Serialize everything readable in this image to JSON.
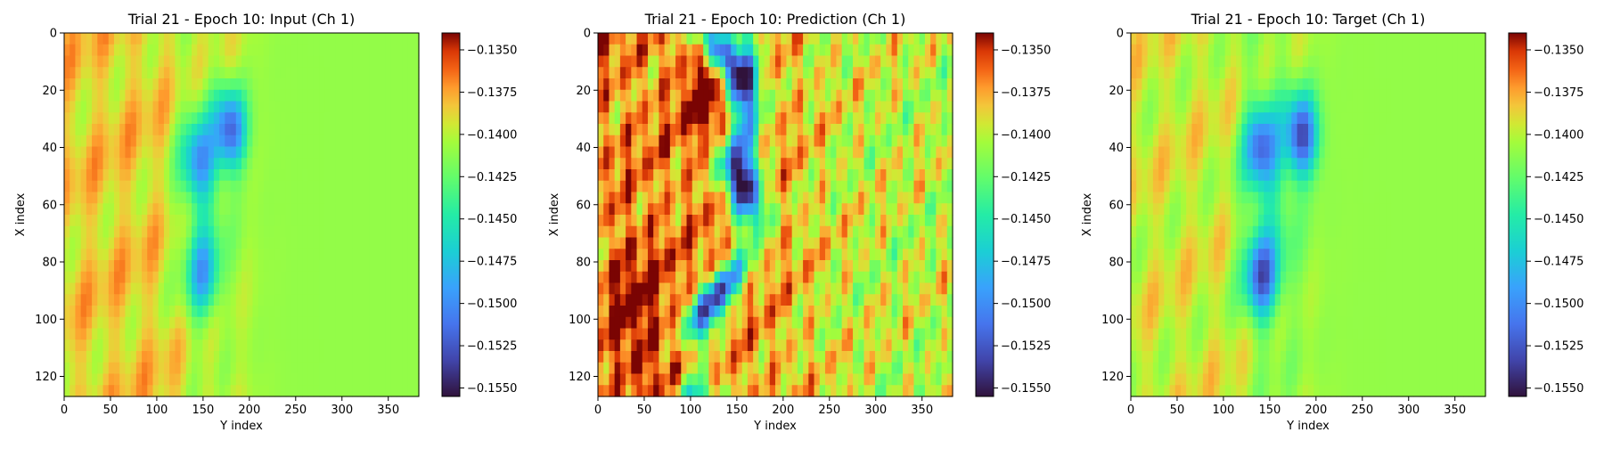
{
  "chart_data": [
    {
      "type": "heatmap",
      "title": "Trial 21 - Epoch 10: Input (Ch 1)",
      "xlabel": "Y index",
      "ylabel": "X index",
      "x_ticks": [
        0,
        50,
        100,
        150,
        200,
        250,
        300,
        350
      ],
      "y_ticks": [
        0,
        20,
        40,
        60,
        80,
        100,
        120
      ],
      "xlim": [
        0,
        383
      ],
      "ylim": [
        127,
        0
      ],
      "colormap": "turbo",
      "colorbar": {
        "range": [
          -0.1555,
          -0.134
        ],
        "ticks": [
          "−0.1350",
          "−0.1375",
          "−0.1400",
          "−0.1425",
          "−0.1450",
          "−0.1475",
          "−0.1500",
          "−0.1525",
          "−0.1550"
        ]
      },
      "field_summary": {
        "background_level": -0.141,
        "left_band_level": -0.1385,
        "features": [
          {
            "kind": "low",
            "x_index": 34,
            "y_index": 180,
            "level": -0.1535
          },
          {
            "kind": "low",
            "x_index": 45,
            "y_index": 145,
            "level": -0.149
          },
          {
            "kind": "low",
            "x_index": 85,
            "y_index": 150,
            "level": -0.148
          }
        ]
      }
    },
    {
      "type": "heatmap",
      "title": "Trial 21 - Epoch 10: Prediction (Ch 1)",
      "xlabel": "Y index",
      "ylabel": "X index",
      "x_ticks": [
        0,
        50,
        100,
        150,
        200,
        250,
        300,
        350
      ],
      "y_ticks": [
        0,
        20,
        40,
        60,
        80,
        100,
        120
      ],
      "xlim": [
        0,
        383
      ],
      "ylim": [
        127,
        0
      ],
      "colormap": "turbo",
      "colorbar": {
        "range": [
          -0.1555,
          -0.134
        ],
        "ticks": [
          "−0.1350",
          "−0.1375",
          "−0.1400",
          "−0.1425",
          "−0.1450",
          "−0.1475",
          "−0.1500",
          "−0.1525",
          "−0.1550"
        ]
      },
      "field_summary": {
        "background_level": -0.14,
        "left_band_level": -0.135,
        "features": [
          {
            "kind": "low_band",
            "y_index_range": [
              95,
              180
            ],
            "level": -0.155
          },
          {
            "kind": "high",
            "x_index": 20,
            "y_index": 125,
            "level": -0.1345
          }
        ]
      }
    },
    {
      "type": "heatmap",
      "title": "Trial 21 - Epoch 10: Target (Ch 1)",
      "xlabel": "Y index",
      "ylabel": "X index",
      "x_ticks": [
        0,
        50,
        100,
        150,
        200,
        250,
        300,
        350
      ],
      "y_ticks": [
        0,
        20,
        40,
        60,
        80,
        100,
        120
      ],
      "xlim": [
        0,
        383
      ],
      "ylim": [
        127,
        0
      ],
      "colormap": "turbo",
      "colorbar": {
        "range": [
          -0.1555,
          -0.134
        ],
        "ticks": [
          "−0.1350",
          "−0.1375",
          "−0.1400",
          "−0.1425",
          "−0.1450",
          "−0.1475",
          "−0.1500",
          "−0.1525",
          "−0.1550"
        ]
      },
      "field_summary": {
        "background_level": -0.141,
        "left_band_level": -0.1395,
        "features": [
          {
            "kind": "low",
            "x_index": 36,
            "y_index": 185,
            "level": -0.1545
          },
          {
            "kind": "low",
            "x_index": 40,
            "y_index": 140,
            "level": -0.1505
          },
          {
            "kind": "low",
            "x_index": 85,
            "y_index": 140,
            "level": -0.1515
          }
        ]
      }
    }
  ]
}
